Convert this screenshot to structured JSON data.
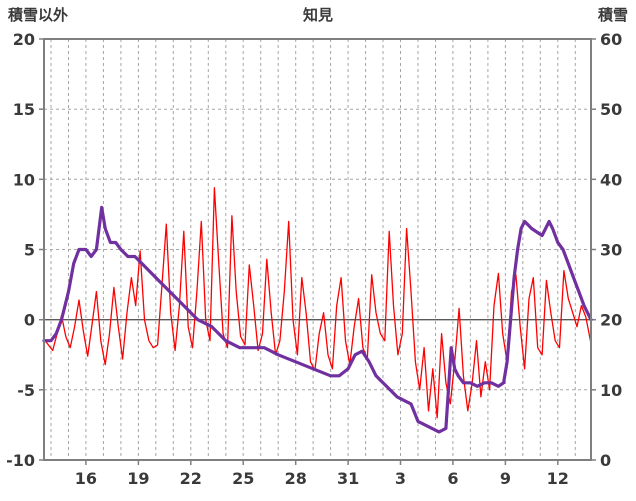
{
  "chart_data": {
    "type": "line",
    "title": "知見",
    "grid": true,
    "zero_line": true,
    "legend_position": "none",
    "colors": {
      "temperature": "#ff0000",
      "snow_depth": "#7030a0",
      "grid": "#a6a6a6",
      "axis_text": "#3a3a3a",
      "border": "#7f7f7f",
      "zero": "#595959"
    },
    "left_axis": {
      "label": "積雪以外",
      "min": -10,
      "max": 20,
      "ticks": [
        20,
        15,
        10,
        5,
        0,
        -5,
        -10
      ]
    },
    "right_axis": {
      "label": "積雪",
      "min": 0,
      "max": 60,
      "ticks": [
        60,
        50,
        40,
        30,
        20,
        10,
        0
      ]
    },
    "x_axis": {
      "min": 13.6,
      "max": 44.9,
      "grid_day_start": 14,
      "grid_day_end": 44,
      "ticks": [
        {
          "v": 16,
          "label": "16"
        },
        {
          "v": 19,
          "label": "19"
        },
        {
          "v": 22,
          "label": "22"
        },
        {
          "v": 25,
          "label": "25"
        },
        {
          "v": 28,
          "label": "28"
        },
        {
          "v": 31,
          "label": "31"
        },
        {
          "v": 34,
          "label": "3"
        },
        {
          "v": 37,
          "label": "6"
        },
        {
          "v": 40,
          "label": "9"
        },
        {
          "v": 43,
          "label": "12"
        }
      ]
    },
    "series": [
      {
        "name": "積雪以外",
        "axis": "left",
        "color": "#ff0000",
        "width": 1.3,
        "points": [
          [
            13.6,
            -1.4
          ],
          [
            13.85,
            -1.8
          ],
          [
            14.1,
            -2.2
          ],
          [
            14.35,
            -1.0
          ],
          [
            14.6,
            0.3
          ],
          [
            14.85,
            -1.2
          ],
          [
            15.1,
            -2.0
          ],
          [
            15.35,
            -0.5
          ],
          [
            15.6,
            1.4
          ],
          [
            15.85,
            -0.8
          ],
          [
            16.1,
            -2.6
          ],
          [
            16.35,
            -0.3
          ],
          [
            16.6,
            2.0
          ],
          [
            16.85,
            -1.5
          ],
          [
            17.1,
            -3.2
          ],
          [
            17.35,
            -1.0
          ],
          [
            17.6,
            2.3
          ],
          [
            17.85,
            -0.5
          ],
          [
            18.1,
            -2.8
          ],
          [
            18.35,
            0.5
          ],
          [
            18.6,
            3.0
          ],
          [
            18.85,
            1.0
          ],
          [
            19.1,
            4.9
          ],
          [
            19.35,
            0.0
          ],
          [
            19.6,
            -1.5
          ],
          [
            19.85,
            -2.0
          ],
          [
            20.1,
            -1.8
          ],
          [
            20.35,
            2.5
          ],
          [
            20.6,
            6.8
          ],
          [
            20.85,
            0.5
          ],
          [
            21.1,
            -2.2
          ],
          [
            21.35,
            1.0
          ],
          [
            21.6,
            6.3
          ],
          [
            21.85,
            -0.5
          ],
          [
            22.1,
            -2.0
          ],
          [
            22.35,
            2.0
          ],
          [
            22.6,
            7.0
          ],
          [
            22.85,
            0.0
          ],
          [
            23.1,
            -1.5
          ],
          [
            23.35,
            9.4
          ],
          [
            23.6,
            4.0
          ],
          [
            23.85,
            -1.0
          ],
          [
            24.1,
            -2.0
          ],
          [
            24.35,
            7.4
          ],
          [
            24.6,
            2.0
          ],
          [
            24.85,
            -1.2
          ],
          [
            25.1,
            -1.8
          ],
          [
            25.35,
            3.9
          ],
          [
            25.6,
            1.0
          ],
          [
            25.85,
            -2.2
          ],
          [
            26.1,
            -1.0
          ],
          [
            26.35,
            4.3
          ],
          [
            26.6,
            0.5
          ],
          [
            26.85,
            -2.5
          ],
          [
            27.1,
            -1.5
          ],
          [
            27.35,
            2.0
          ],
          [
            27.6,
            7.0
          ],
          [
            27.85,
            0.0
          ],
          [
            28.1,
            -2.5
          ],
          [
            28.35,
            3.0
          ],
          [
            28.6,
            0.5
          ],
          [
            28.85,
            -3.0
          ],
          [
            29.1,
            -3.6
          ],
          [
            29.35,
            -1.0
          ],
          [
            29.6,
            0.5
          ],
          [
            29.85,
            -2.5
          ],
          [
            30.1,
            -3.5
          ],
          [
            30.35,
            1.0
          ],
          [
            30.6,
            3.0
          ],
          [
            30.85,
            -1.5
          ],
          [
            31.1,
            -3.2
          ],
          [
            31.35,
            -0.5
          ],
          [
            31.6,
            1.5
          ],
          [
            31.85,
            -2.0
          ],
          [
            32.1,
            -2.8
          ],
          [
            32.35,
            3.2
          ],
          [
            32.6,
            0.5
          ],
          [
            32.85,
            -1.0
          ],
          [
            33.1,
            -1.5
          ],
          [
            33.35,
            6.3
          ],
          [
            33.6,
            1.0
          ],
          [
            33.85,
            -2.5
          ],
          [
            34.1,
            -1.0
          ],
          [
            34.35,
            6.5
          ],
          [
            34.6,
            2.0
          ],
          [
            34.85,
            -3.0
          ],
          [
            35.1,
            -5.0
          ],
          [
            35.35,
            -2.0
          ],
          [
            35.6,
            -6.5
          ],
          [
            35.85,
            -3.5
          ],
          [
            36.1,
            -7.0
          ],
          [
            36.35,
            -1.0
          ],
          [
            36.6,
            -4.5
          ],
          [
            36.85,
            -6.0
          ],
          [
            37.1,
            -3.0
          ],
          [
            37.35,
            0.8
          ],
          [
            37.6,
            -4.0
          ],
          [
            37.85,
            -6.5
          ],
          [
            38.1,
            -4.5
          ],
          [
            38.35,
            -1.5
          ],
          [
            38.6,
            -5.5
          ],
          [
            38.85,
            -3.0
          ],
          [
            39.1,
            -5.0
          ],
          [
            39.35,
            1.0
          ],
          [
            39.6,
            3.3
          ],
          [
            39.85,
            -1.0
          ],
          [
            40.1,
            -3.0
          ],
          [
            40.35,
            2.0
          ],
          [
            40.6,
            3.2
          ],
          [
            40.85,
            -0.5
          ],
          [
            41.1,
            -3.5
          ],
          [
            41.35,
            1.5
          ],
          [
            41.6,
            3.0
          ],
          [
            41.85,
            -2.0
          ],
          [
            42.1,
            -2.5
          ],
          [
            42.35,
            2.8
          ],
          [
            42.6,
            0.5
          ],
          [
            42.85,
            -1.5
          ],
          [
            43.1,
            -2.0
          ],
          [
            43.35,
            3.5
          ],
          [
            43.6,
            1.5
          ],
          [
            43.85,
            0.5
          ],
          [
            44.1,
            -0.5
          ],
          [
            44.35,
            1.0
          ],
          [
            44.6,
            0.2
          ],
          [
            44.9,
            -1.7
          ]
        ]
      },
      {
        "name": "積雪",
        "axis": "right",
        "color": "#7030a0",
        "width": 3.2,
        "points": [
          [
            13.6,
            17
          ],
          [
            14.0,
            17
          ],
          [
            14.3,
            18
          ],
          [
            14.6,
            20
          ],
          [
            15.0,
            24
          ],
          [
            15.3,
            28
          ],
          [
            15.6,
            30
          ],
          [
            16.0,
            30
          ],
          [
            16.3,
            29
          ],
          [
            16.6,
            30
          ],
          [
            16.9,
            36
          ],
          [
            17.1,
            33
          ],
          [
            17.4,
            31
          ],
          [
            17.7,
            31
          ],
          [
            18.0,
            30
          ],
          [
            18.4,
            29
          ],
          [
            18.8,
            29
          ],
          [
            19.2,
            28
          ],
          [
            19.6,
            27
          ],
          [
            20.0,
            26
          ],
          [
            20.4,
            25
          ],
          [
            20.8,
            24
          ],
          [
            21.2,
            23
          ],
          [
            21.6,
            22
          ],
          [
            22.0,
            21
          ],
          [
            22.4,
            20
          ],
          [
            22.8,
            19.5
          ],
          [
            23.2,
            19
          ],
          [
            23.6,
            18
          ],
          [
            24.0,
            17
          ],
          [
            24.4,
            16.5
          ],
          [
            24.8,
            16
          ],
          [
            25.5,
            16
          ],
          [
            26.2,
            16
          ],
          [
            26.6,
            15.5
          ],
          [
            27.0,
            15
          ],
          [
            27.5,
            14.5
          ],
          [
            28.0,
            14
          ],
          [
            28.5,
            13.5
          ],
          [
            29.0,
            13
          ],
          [
            29.5,
            12.5
          ],
          [
            30.0,
            12
          ],
          [
            30.5,
            12
          ],
          [
            31.0,
            13
          ],
          [
            31.4,
            15
          ],
          [
            31.8,
            15.5
          ],
          [
            32.2,
            14
          ],
          [
            32.6,
            12
          ],
          [
            33.0,
            11
          ],
          [
            33.4,
            10
          ],
          [
            33.8,
            9
          ],
          [
            34.2,
            8.5
          ],
          [
            34.6,
            8
          ],
          [
            35.0,
            5.5
          ],
          [
            35.4,
            5
          ],
          [
            35.8,
            4.5
          ],
          [
            36.2,
            4
          ],
          [
            36.6,
            4.5
          ],
          [
            36.9,
            16
          ],
          [
            37.1,
            13
          ],
          [
            37.3,
            12
          ],
          [
            37.6,
            11
          ],
          [
            38.0,
            11
          ],
          [
            38.4,
            10.5
          ],
          [
            38.8,
            11
          ],
          [
            39.2,
            11
          ],
          [
            39.6,
            10.5
          ],
          [
            39.9,
            11
          ],
          [
            40.1,
            14
          ],
          [
            40.3,
            20
          ],
          [
            40.5,
            26
          ],
          [
            40.7,
            30
          ],
          [
            40.9,
            33
          ],
          [
            41.1,
            34
          ],
          [
            41.3,
            33.5
          ],
          [
            41.5,
            33
          ],
          [
            41.8,
            32.5
          ],
          [
            42.1,
            32
          ],
          [
            42.3,
            33
          ],
          [
            42.5,
            34
          ],
          [
            42.7,
            33
          ],
          [
            43.0,
            31
          ],
          [
            43.3,
            30
          ],
          [
            43.6,
            28
          ],
          [
            43.9,
            26
          ],
          [
            44.2,
            24
          ],
          [
            44.5,
            22
          ],
          [
            44.8,
            20.5
          ],
          [
            44.9,
            20
          ]
        ]
      }
    ]
  }
}
